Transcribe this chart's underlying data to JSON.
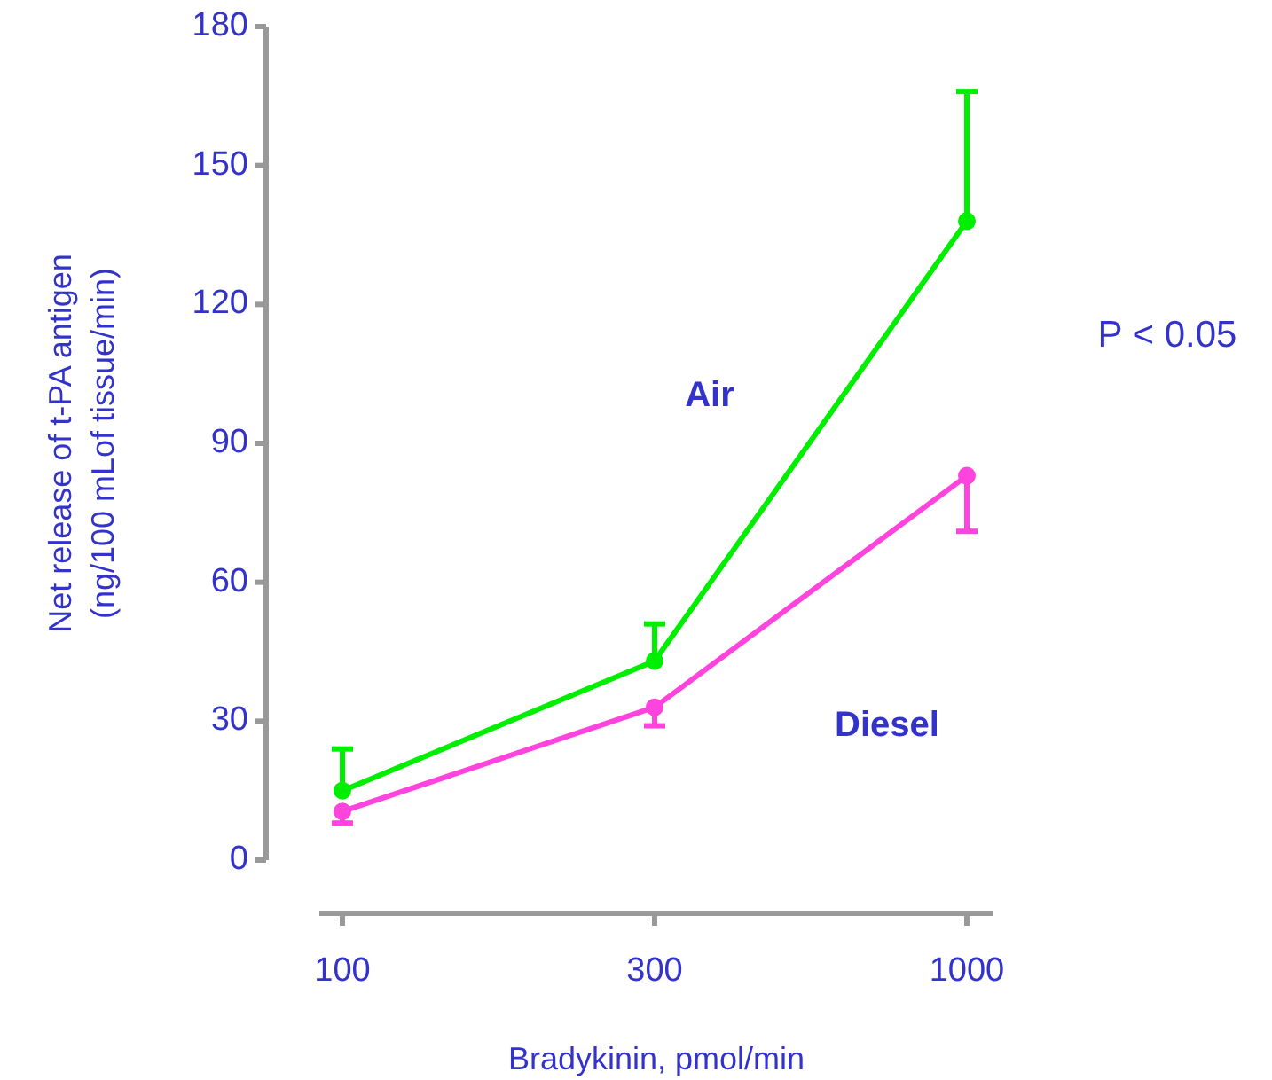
{
  "chart_data": {
    "type": "line",
    "xlabel": "Bradykinin, pmol/min",
    "ylabel": "Net release of t-PA antigen\n(ng/100 mLof tissue/min)",
    "categories": [
      "100",
      "300",
      "1000"
    ],
    "series": [
      {
        "name": "Air",
        "color": "#00ee00",
        "values": [
          15,
          43,
          138
        ],
        "errors": [
          [
            15,
            24
          ],
          [
            43,
            51
          ],
          [
            138,
            166
          ]
        ]
      },
      {
        "name": "Diesel",
        "color": "#ff44dd",
        "values": [
          10.5,
          33,
          83
        ],
        "errors": [
          [
            8,
            10.5
          ],
          [
            29,
            33
          ],
          [
            71,
            83
          ]
        ]
      }
    ],
    "ylim": [
      0,
      180
    ],
    "yticks": [
      0,
      30,
      60,
      90,
      120,
      150,
      180
    ],
    "marker": "circle",
    "legend": false,
    "grid": false,
    "annotations": [
      "P < 0.05"
    ]
  }
}
